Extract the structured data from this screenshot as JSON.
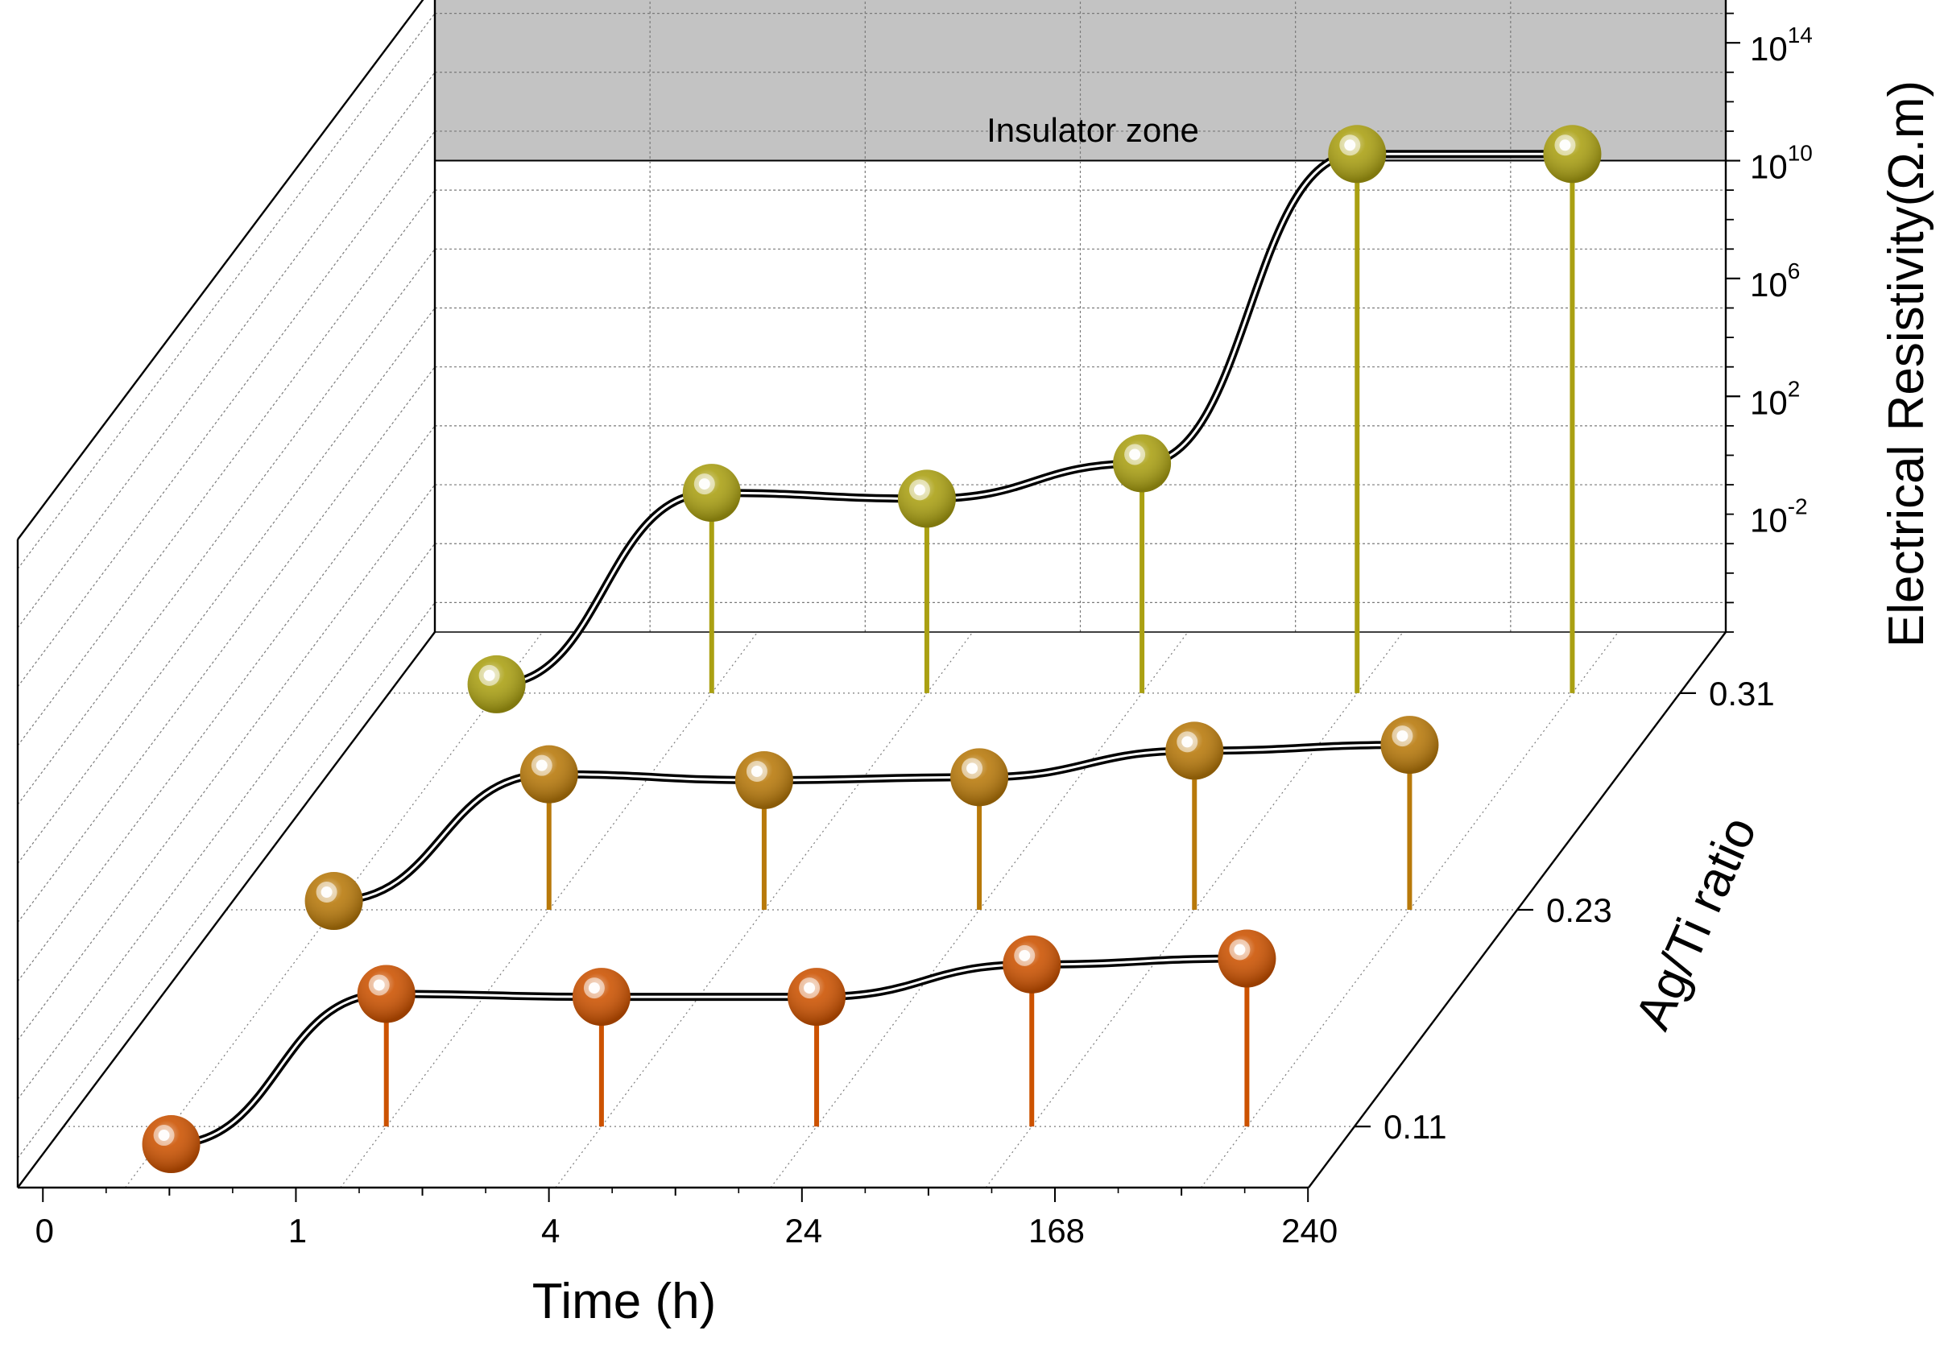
{
  "chart_data": {
    "type": "3d-scatter-drop-lines",
    "title": "",
    "insulator_zone": {
      "label": "Insulator zone",
      "log10_range": [
        10,
        16
      ],
      "fill_color": "#c3c3c3"
    },
    "x_axis": {
      "title": "Time (h)",
      "categories": [
        "0",
        "1",
        "4",
        "24",
        "168",
        "240"
      ]
    },
    "y_axis": {
      "title": "Ag/Ti ratio",
      "categories": [
        "0.11",
        "0.23",
        "0.31"
      ]
    },
    "z_axis": {
      "title": "Electrical Resistivity(Ω.m)",
      "scale": "log",
      "log10_range": [
        -6,
        16
      ],
      "major_ticks": [
        {
          "base": "10",
          "exponent": "14",
          "log10": 14
        },
        {
          "base": "10",
          "exponent": "10",
          "log10": 10
        },
        {
          "base": "10",
          "exponent": "6",
          "log10": 6
        },
        {
          "base": "10",
          "exponent": "2",
          "log10": 2
        },
        {
          "base": "10",
          "exponent": "-2",
          "log10": -2
        }
      ]
    },
    "series": [
      {
        "name": "0.11",
        "color": "#cc5200",
        "log10_resistivity": [
          -6.6,
          -1.5,
          -1.6,
          -1.6,
          -0.5,
          -0.3
        ]
      },
      {
        "name": "0.23",
        "color": "#b8790a",
        "log10_resistivity": [
          -5.7,
          -1.4,
          -1.6,
          -1.5,
          -0.6,
          -0.4
        ]
      },
      {
        "name": "0.31",
        "color": "#aaa012",
        "log10_resistivity": [
          -5.7,
          0.8,
          0.6,
          1.8,
          12.3,
          12.3
        ]
      }
    ]
  }
}
